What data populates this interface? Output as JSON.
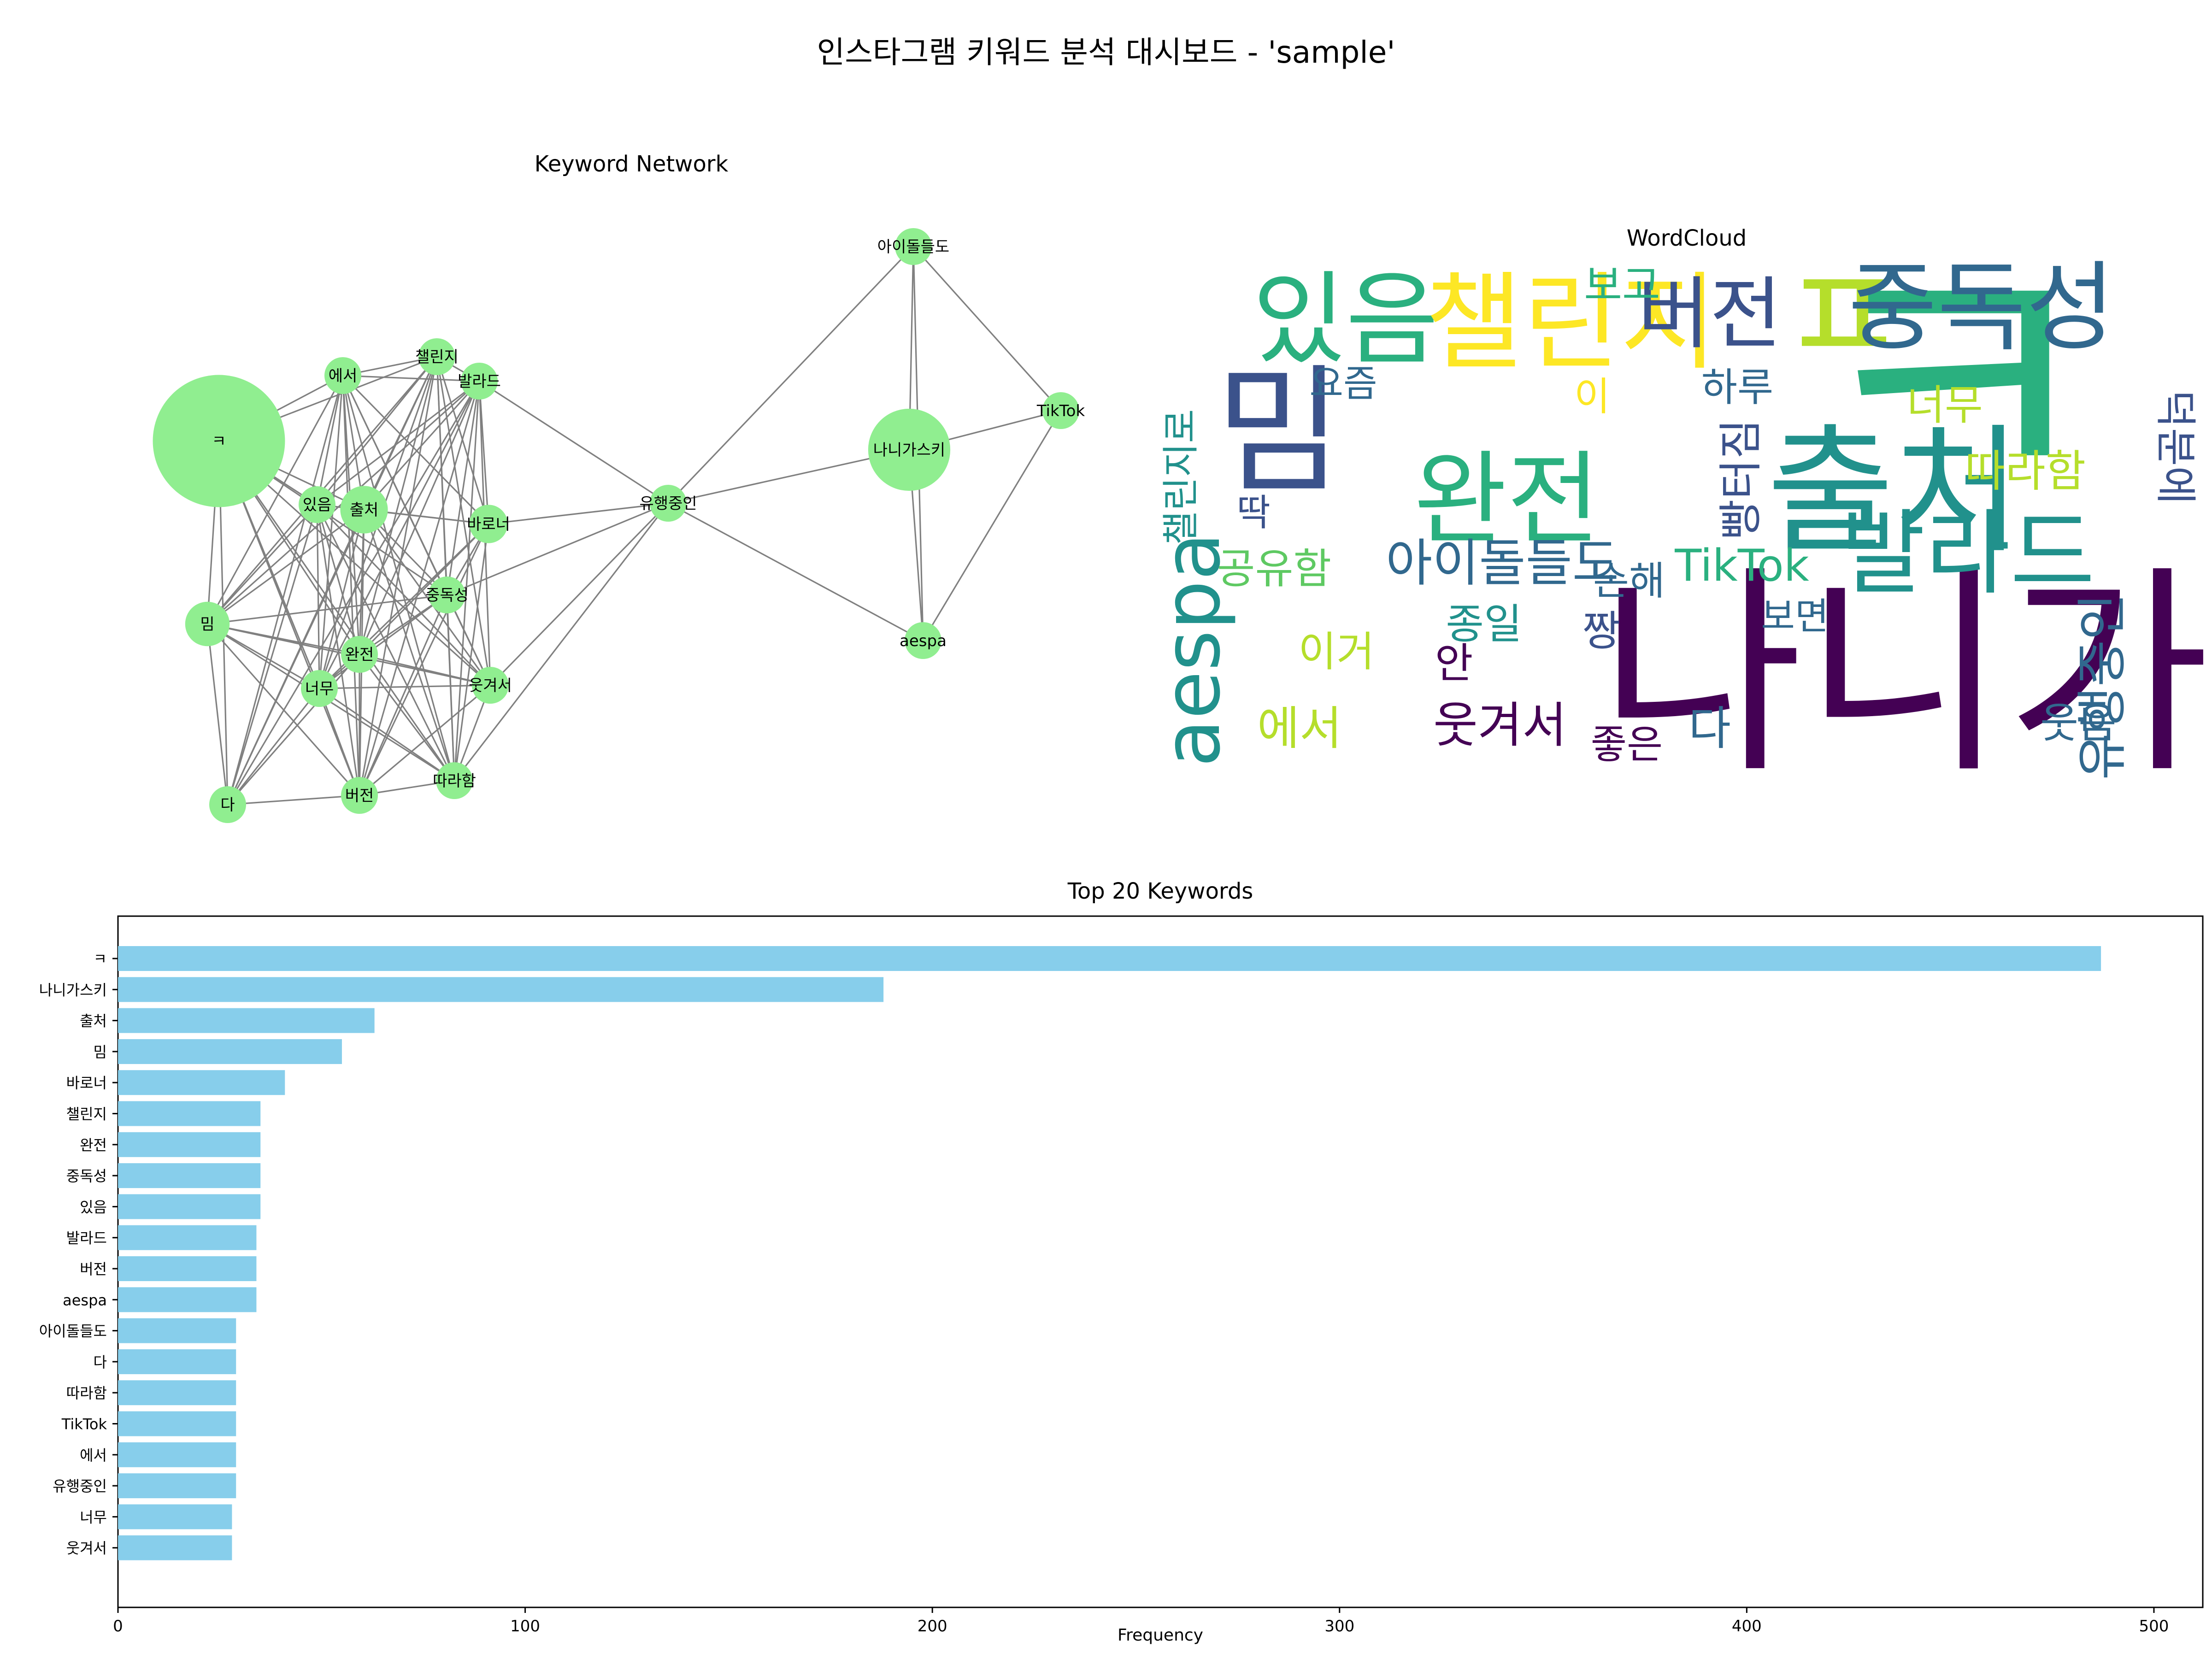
{
  "title": "인스타그램 키워드 분석 대시보드 - 'sample'",
  "colors": {
    "node": "#90ee90",
    "edge": "#808080",
    "bar": "#87ceeb",
    "wordcloud_palette": [
      "#440154",
      "#3b528b",
      "#21918c",
      "#2ab07f",
      "#5ec962",
      "#b5de2b",
      "#fde725",
      "#31688e"
    ]
  },
  "chart_data": [
    {
      "type": "network",
      "title": "Keyword Network",
      "nodes": [
        {
          "id": "ㅋ",
          "weight": 487
        },
        {
          "id": "나니가스키",
          "weight": 188
        },
        {
          "id": "출처",
          "weight": 63
        },
        {
          "id": "밈",
          "weight": 55
        },
        {
          "id": "바로너",
          "weight": 41
        },
        {
          "id": "챌린지",
          "weight": 35
        },
        {
          "id": "완전",
          "weight": 35
        },
        {
          "id": "중독성",
          "weight": 35
        },
        {
          "id": "있음",
          "weight": 35
        },
        {
          "id": "발라드",
          "weight": 34
        },
        {
          "id": "버전",
          "weight": 34
        },
        {
          "id": "aespa",
          "weight": 34
        },
        {
          "id": "아이돌들도",
          "weight": 29
        },
        {
          "id": "다",
          "weight": 29
        },
        {
          "id": "따라함",
          "weight": 29
        },
        {
          "id": "TikTok",
          "weight": 29
        },
        {
          "id": "에서",
          "weight": 29
        },
        {
          "id": "유행중인",
          "weight": 29
        },
        {
          "id": "너무",
          "weight": 28
        },
        {
          "id": "웃겨서",
          "weight": 28
        }
      ],
      "edges": [
        [
          "아이돌들도",
          "나니가스키"
        ],
        [
          "아이돌들도",
          "TikTok"
        ],
        [
          "아이돌들도",
          "aespa"
        ],
        [
          "아이돌들도",
          "유행중인"
        ],
        [
          "나니가스키",
          "TikTok"
        ],
        [
          "나니가스키",
          "aespa"
        ],
        [
          "나니가스키",
          "유행중인"
        ],
        [
          "TikTok",
          "aespa"
        ],
        [
          "유행중인",
          "aespa"
        ],
        [
          "유행중인",
          "발라드"
        ],
        [
          "유행중인",
          "바로너"
        ],
        [
          "유행중인",
          "중독성"
        ],
        [
          "유행중인",
          "웃겨서"
        ],
        [
          "유행중인",
          "따라함"
        ],
        [
          "ㅋ",
          "에서"
        ],
        [
          "ㅋ",
          "챌린지"
        ],
        [
          "ㅋ",
          "있음"
        ],
        [
          "ㅋ",
          "출처"
        ],
        [
          "ㅋ",
          "밈"
        ],
        [
          "ㅋ",
          "완전"
        ],
        [
          "ㅋ",
          "너무"
        ],
        [
          "ㅋ",
          "버전"
        ],
        [
          "ㅋ",
          "다"
        ],
        [
          "ㅋ",
          "따라함"
        ],
        [
          "ㅋ",
          "웃겨서"
        ],
        [
          "ㅋ",
          "중독성"
        ],
        [
          "에서",
          "챌린지"
        ],
        [
          "에서",
          "발라드"
        ],
        [
          "에서",
          "있음"
        ],
        [
          "에서",
          "출처"
        ],
        [
          "에서",
          "밈"
        ],
        [
          "에서",
          "완전"
        ],
        [
          "에서",
          "너무"
        ],
        [
          "에서",
          "버전"
        ],
        [
          "에서",
          "다"
        ],
        [
          "에서",
          "따라함"
        ],
        [
          "에서",
          "웃겨서"
        ],
        [
          "에서",
          "중독성"
        ],
        [
          "에서",
          "바로너"
        ],
        [
          "챌린지",
          "발라드"
        ],
        [
          "챌린지",
          "있음"
        ],
        [
          "챌린지",
          "출처"
        ],
        [
          "챌린지",
          "밈"
        ],
        [
          "챌린지",
          "완전"
        ],
        [
          "챌린지",
          "너무"
        ],
        [
          "챌린지",
          "버전"
        ],
        [
          "챌린지",
          "다"
        ],
        [
          "챌린지",
          "따라함"
        ],
        [
          "챌린지",
          "웃겨서"
        ],
        [
          "챌린지",
          "중독성"
        ],
        [
          "챌린지",
          "바로너"
        ],
        [
          "발라드",
          "있음"
        ],
        [
          "발라드",
          "출처"
        ],
        [
          "발라드",
          "밈"
        ],
        [
          "발라드",
          "완전"
        ],
        [
          "발라드",
          "너무"
        ],
        [
          "발라드",
          "버전"
        ],
        [
          "발라드",
          "다"
        ],
        [
          "발라드",
          "따라함"
        ],
        [
          "발라드",
          "웃겨서"
        ],
        [
          "발라드",
          "중독성"
        ],
        [
          "발라드",
          "바로너"
        ],
        [
          "있음",
          "출처"
        ],
        [
          "있음",
          "밈"
        ],
        [
          "있음",
          "완전"
        ],
        [
          "있음",
          "너무"
        ],
        [
          "있음",
          "버전"
        ],
        [
          "있음",
          "바로너"
        ],
        [
          "있음",
          "웃겨서"
        ],
        [
          "있음",
          "따라함"
        ],
        [
          "출처",
          "밈"
        ],
        [
          "출처",
          "완전"
        ],
        [
          "출처",
          "너무"
        ],
        [
          "출처",
          "버전"
        ],
        [
          "출처",
          "바로너"
        ],
        [
          "출처",
          "중독성"
        ],
        [
          "출처",
          "웃겨서"
        ],
        [
          "출처",
          "따라함"
        ],
        [
          "출처",
          "다"
        ],
        [
          "밈",
          "완전"
        ],
        [
          "밈",
          "너무"
        ],
        [
          "밈",
          "다"
        ],
        [
          "밈",
          "웃겨서"
        ],
        [
          "밈",
          "따라함"
        ],
        [
          "밈",
          "중독성"
        ],
        [
          "밈",
          "버전"
        ],
        [
          "바로너",
          "중독성"
        ],
        [
          "바로너",
          "완전"
        ],
        [
          "바로너",
          "너무"
        ],
        [
          "바로너",
          "버전"
        ],
        [
          "바로너",
          "따라함"
        ],
        [
          "중독성",
          "완전"
        ],
        [
          "중독성",
          "웃겨서"
        ],
        [
          "중독성",
          "따라함"
        ],
        [
          "중독성",
          "버전"
        ],
        [
          "중독성",
          "너무"
        ],
        [
          "완전",
          "너무"
        ],
        [
          "완전",
          "웃겨서"
        ],
        [
          "완전",
          "버전"
        ],
        [
          "완전",
          "따라함"
        ],
        [
          "완전",
          "다"
        ],
        [
          "너무",
          "웃겨서"
        ],
        [
          "너무",
          "버전"
        ],
        [
          "너무",
          "다"
        ],
        [
          "너무",
          "따라함"
        ],
        [
          "웃겨서",
          "따라함"
        ],
        [
          "웃겨서",
          "버전"
        ],
        [
          "버전",
          "다"
        ],
        [
          "버전",
          "따라함"
        ],
        [
          "다",
          "있음"
        ]
      ]
    },
    {
      "type": "wordcloud",
      "title": "WordCloud",
      "words": [
        {
          "text": "나니가스키",
          "color": 0
        },
        {
          "text": "출처",
          "color": 2
        },
        {
          "text": "ㅋ",
          "color": 3
        },
        {
          "text": "밈",
          "color": 1
        },
        {
          "text": "완전",
          "color": 3
        },
        {
          "text": "있음",
          "color": 3
        },
        {
          "text": "챌린지",
          "color": 6
        },
        {
          "text": "버전",
          "color": 1
        },
        {
          "text": "ㅍ",
          "color": 5
        },
        {
          "text": "중독성",
          "color": 7
        },
        {
          "text": "발라드",
          "color": 2
        },
        {
          "text": "aespa",
          "color": 2
        },
        {
          "text": "유행중인",
          "color": 7
        },
        {
          "text": "아이돌들도",
          "color": 7
        },
        {
          "text": "TikTok",
          "color": 3
        },
        {
          "text": "빵터짐",
          "color": 1
        },
        {
          "text": "따라함",
          "color": 5
        },
        {
          "text": "너무",
          "color": 5
        },
        {
          "text": "덕분에",
          "color": 1
        },
        {
          "text": "챌린지로",
          "color": 2
        },
        {
          "text": "보고",
          "color": 3
        },
        {
          "text": "요즘",
          "color": 7
        },
        {
          "text": "하루",
          "color": 7
        },
        {
          "text": "이",
          "color": 6
        },
        {
          "text": "딱",
          "color": 1
        },
        {
          "text": "공유함",
          "color": 4
        },
        {
          "text": "손해",
          "color": 7
        },
        {
          "text": "보면",
          "color": 7
        },
        {
          "text": "종일",
          "color": 2
        },
        {
          "text": "짱",
          "color": 1
        },
        {
          "text": "이거",
          "color": 5
        },
        {
          "text": "안",
          "color": 0
        },
        {
          "text": "에서",
          "color": 5
        },
        {
          "text": "웃겨서",
          "color": 0
        },
        {
          "text": "좋은",
          "color": 0
        },
        {
          "text": "다",
          "color": 7
        },
        {
          "text": "웃음",
          "color": 7
        }
      ]
    },
    {
      "type": "bar",
      "orientation": "horizontal",
      "title": "Top 20 Keywords",
      "xlabel": "Frequency",
      "ylabel": "",
      "xlim": [
        0,
        512
      ],
      "xticks": [
        0,
        100,
        200,
        300,
        400,
        500
      ],
      "categories": [
        "ㅋ",
        "나니가스키",
        "출처",
        "밈",
        "바로너",
        "챌린지",
        "완전",
        "중독성",
        "있음",
        "발라드",
        "버전",
        "aespa",
        "아이돌들도",
        "다",
        "따라함",
        "TikTok",
        "에서",
        "유행중인",
        "너무",
        "웃겨서"
      ],
      "values": [
        487,
        188,
        63,
        55,
        41,
        35,
        35,
        35,
        35,
        34,
        34,
        34,
        29,
        29,
        29,
        29,
        29,
        29,
        28,
        28
      ]
    }
  ]
}
